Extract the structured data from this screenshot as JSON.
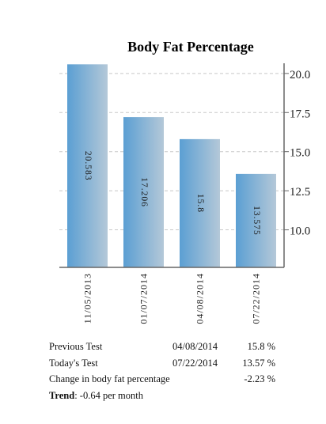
{
  "chart_data": {
    "type": "bar",
    "title": "Body Fat Percentage",
    "categories": [
      "11/05/2013",
      "01/07/2014",
      "04/08/2014",
      "07/22/2014"
    ],
    "values": [
      20.583,
      17.206,
      15.8,
      13.575
    ],
    "value_labels": [
      "20.583",
      "17.206",
      "15.8",
      "13.575"
    ],
    "ylim": [
      7.6,
      20.65
    ],
    "yticks": [
      10.0,
      12.5,
      15.0,
      17.5,
      20.0
    ],
    "ytick_labels": [
      "10.0",
      "12.5",
      "15.0",
      "17.5",
      "20.0"
    ],
    "yaxis_side": "right",
    "grid": true,
    "legend": "none",
    "colors": {
      "bar_left": "#5b9fd3",
      "bar_right": "#b4c8d8",
      "grid": "#c8c8c8",
      "axis": "#666666"
    }
  },
  "stats": {
    "previous": {
      "label": "Previous Test",
      "date": "04/08/2014",
      "value": "15.8 %"
    },
    "today": {
      "label": "Today's Test",
      "date": "07/22/2014",
      "value": "13.57 %"
    },
    "change": {
      "label": "Change in body fat percentage",
      "value": "-2.23 %"
    },
    "trend": {
      "label": "Trend",
      "value": ": -0.64 per month"
    }
  }
}
